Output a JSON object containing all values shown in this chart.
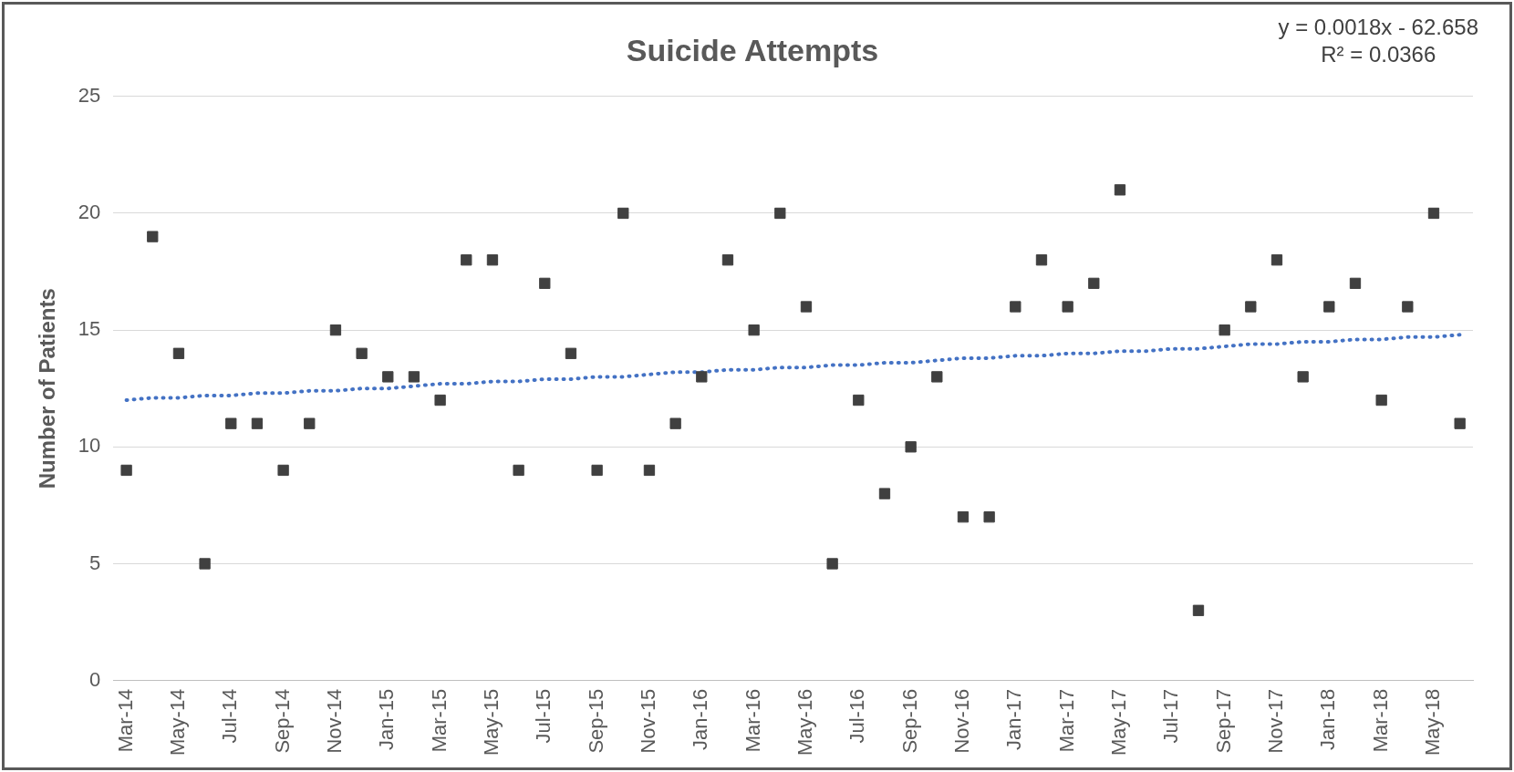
{
  "chart_data": {
    "type": "scatter",
    "title": "Suicide Attempts",
    "ylabel": "Number of Patients",
    "categories": [
      "Mar-14",
      null,
      "May-14",
      null,
      "Jul-14",
      null,
      "Sep-14",
      null,
      "Nov-14",
      null,
      "Jan-15",
      null,
      "Mar-15",
      null,
      "May-15",
      null,
      "Jul-15",
      null,
      "Sep-15",
      null,
      "Nov-15",
      null,
      "Jan-16",
      null,
      "Mar-16",
      null,
      "May-16",
      null,
      "Jul-16",
      null,
      "Sep-16",
      null,
      "Nov-16",
      null,
      "Jan-17",
      null,
      "Mar-17",
      null,
      "May-17",
      null,
      "Jul-17",
      null,
      "Sep-17",
      null,
      "Nov-17",
      null,
      "Jan-18",
      null,
      "Mar-18",
      null,
      "May-18",
      null
    ],
    "series": [
      {
        "color": "#404040",
        "marker": "square",
        "values": [
          9,
          19,
          14,
          5,
          11,
          11,
          9,
          11,
          15,
          14,
          13,
          13,
          12,
          18,
          18,
          9,
          17,
          14,
          9,
          20,
          9,
          11,
          13,
          18,
          15,
          20,
          16,
          5,
          12,
          8,
          10,
          13,
          7,
          7,
          16,
          18,
          16,
          17,
          21,
          null,
          null,
          3,
          15,
          16,
          18,
          13,
          16,
          17,
          12,
          16,
          20,
          11
        ]
      },
      {
        "type": "line",
        "color": "#4472c4",
        "marker": "none",
        "line_style": "dotted",
        "values": [
          12.0,
          12.1,
          12.1,
          12.2,
          12.2,
          12.3,
          12.3,
          12.4,
          12.4,
          12.5,
          12.5,
          12.6,
          12.7,
          12.7,
          12.8,
          12.8,
          12.9,
          12.9,
          13.0,
          13.0,
          13.1,
          13.2,
          13.2,
          13.3,
          13.3,
          13.4,
          13.4,
          13.5,
          13.5,
          13.6,
          13.6,
          13.7,
          13.8,
          13.8,
          13.9,
          13.9,
          14.0,
          14.0,
          14.1,
          14.1,
          14.2,
          14.2,
          14.3,
          14.4,
          14.4,
          14.5,
          14.5,
          14.6,
          14.6,
          14.7,
          14.7,
          14.8
        ]
      }
    ],
    "ylim": [
      0,
      25
    ],
    "yticks": [
      0,
      5,
      10,
      15,
      20,
      25
    ],
    "grid": "y",
    "legend": false,
    "annotations": [
      "y = 0.0018x - 62.658",
      "R² = 0.0366"
    ]
  }
}
